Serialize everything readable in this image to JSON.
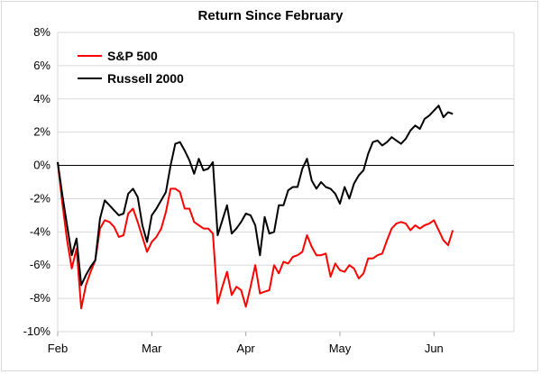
{
  "chart_data": {
    "type": "line",
    "title": "Return Since February",
    "xlabel": "",
    "ylabel": "",
    "x_tick_labels": [
      "Feb",
      "Mar",
      "Apr",
      "May",
      "Jun"
    ],
    "y_tick_labels": [
      "8%",
      "6%",
      "4%",
      "2%",
      "0%",
      "-2%",
      "-4%",
      "-6%",
      "-8%",
      "-10%"
    ],
    "ylim": [
      -10,
      8
    ],
    "y_ticks": [
      8,
      6,
      4,
      2,
      0,
      -2,
      -4,
      -6,
      -8,
      -10
    ],
    "grid": true,
    "legend_position": "top-left",
    "x_unit": "trading day index (Feb start = 0)",
    "month_ticks": {
      "Feb": 0,
      "Mar": 20,
      "Apr": 40,
      "May": 60,
      "Jun": 80
    },
    "x": [
      0,
      1,
      2,
      3,
      4,
      5,
      6,
      7,
      8,
      9,
      10,
      11,
      12,
      13,
      14,
      15,
      16,
      17,
      18,
      19,
      20,
      21,
      22,
      23,
      24,
      25,
      26,
      27,
      28,
      29,
      30,
      31,
      32,
      33,
      34,
      35,
      36,
      37,
      38,
      39,
      40,
      41,
      42,
      43,
      44,
      45,
      46,
      47,
      48,
      49,
      50,
      51,
      52,
      53,
      54,
      55,
      56,
      57,
      58,
      59,
      60,
      61,
      62,
      63,
      64,
      65,
      66,
      67,
      68,
      69,
      70,
      71,
      72,
      73,
      74,
      75,
      76,
      77,
      78,
      79,
      80,
      81,
      82,
      83,
      84
    ],
    "series": [
      {
        "name": "S&P 500",
        "color": "#ff0000",
        "values": [
          0.2,
          -2.3,
          -4.5,
          -6.2,
          -5.0,
          -8.6,
          -7.2,
          -6.4,
          -5.7,
          -3.8,
          -3.3,
          -3.4,
          -3.7,
          -4.3,
          -4.2,
          -2.9,
          -2.6,
          -3.4,
          -4.3,
          -5.2,
          -4.6,
          -4.3,
          -3.8,
          -2.8,
          -1.4,
          -1.4,
          -1.6,
          -2.6,
          -2.6,
          -3.4,
          -3.6,
          -3.8,
          -3.8,
          -4.1,
          -8.3,
          -7.3,
          -6.4,
          -7.8,
          -7.3,
          -7.5,
          -8.5,
          -7.3,
          -6.0,
          -7.7,
          -7.6,
          -7.5,
          -6.0,
          -6.5,
          -5.8,
          -5.9,
          -5.5,
          -5.4,
          -5.2,
          -4.2,
          -4.9,
          -5.4,
          -5.4,
          -5.3,
          -6.7,
          -5.9,
          -6.3,
          -6.4,
          -6.0,
          -6.2,
          -6.8,
          -6.5,
          -5.6,
          -5.6,
          -5.4,
          -5.3,
          -4.5,
          -3.8,
          -3.5,
          -3.4,
          -3.5,
          -3.9,
          -3.6,
          -3.8,
          -3.6,
          -3.5,
          -3.3,
          -3.9,
          -4.5,
          -4.8,
          -3.9
        ]
      },
      {
        "name": "Russell 2000",
        "color": "#000000",
        "values": [
          0.2,
          -1.8,
          -3.6,
          -5.4,
          -4.4,
          -7.2,
          -6.6,
          -6.1,
          -5.7,
          -3.2,
          -2.1,
          -2.4,
          -2.7,
          -3.0,
          -2.9,
          -1.7,
          -1.4,
          -1.9,
          -3.6,
          -4.6,
          -3.0,
          -2.6,
          -2.1,
          -1.6,
          0.0,
          1.3,
          1.4,
          0.9,
          0.3,
          -0.5,
          0.4,
          -0.3,
          -0.2,
          0.2,
          -4.2,
          -3.3,
          -2.4,
          -4.1,
          -3.8,
          -3.4,
          -2.9,
          -3.0,
          -3.6,
          -5.4,
          -3.1,
          -4.1,
          -4.0,
          -2.4,
          -2.4,
          -1.5,
          -1.3,
          -1.3,
          -0.2,
          0.4,
          -0.9,
          -1.4,
          -1.0,
          -1.3,
          -1.4,
          -1.7,
          -2.3,
          -1.3,
          -2.0,
          -1.1,
          -0.6,
          -0.3,
          0.7,
          1.4,
          1.5,
          1.2,
          1.4,
          1.7,
          1.5,
          1.3,
          1.6,
          2.1,
          2.4,
          2.2,
          2.8,
          3.0,
          3.3,
          3.6,
          2.9,
          3.2,
          3.1
        ]
      }
    ]
  }
}
